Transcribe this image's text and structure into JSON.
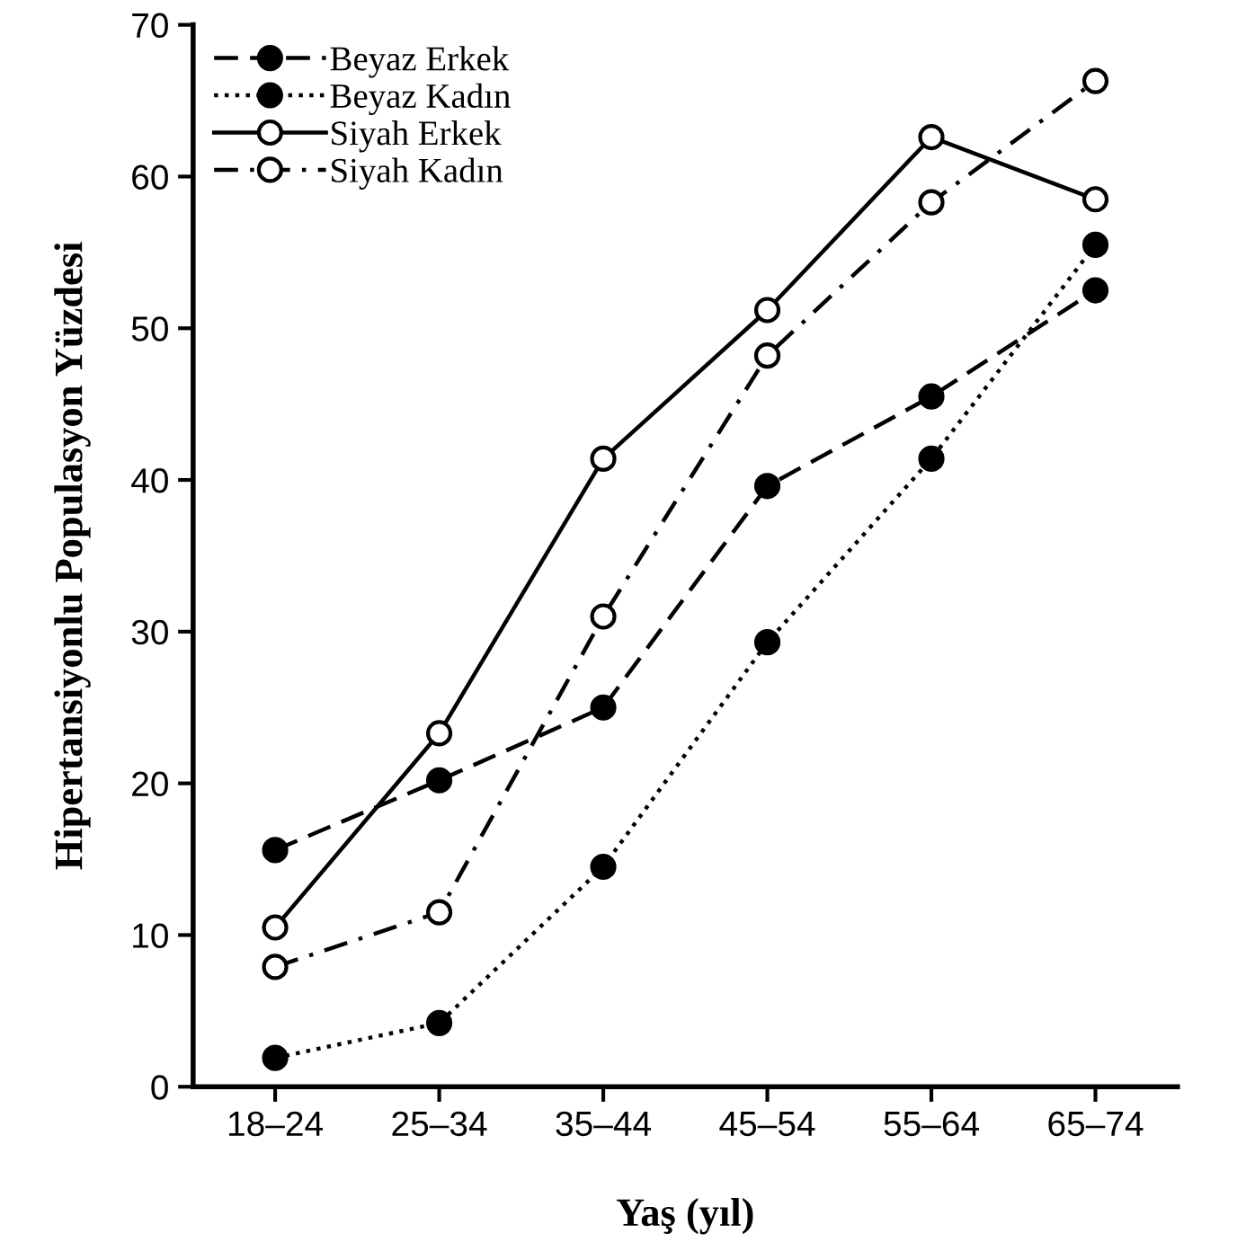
{
  "chart_data": {
    "type": "line",
    "xlabel": "Yaş (yıl)",
    "ylabel": "Hipertansiyonlu Populasyon Yüzdesi",
    "categories": [
      "18–24",
      "25–34",
      "35–44",
      "45–54",
      "55–64",
      "65–74"
    ],
    "series": [
      {
        "name": "Beyaz Erkek",
        "color": "#000000",
        "values": [
          15.6,
          20.2,
          25.0,
          39.6,
          45.5,
          52.5
        ],
        "marker": "circle",
        "line_style": "dashed"
      },
      {
        "name": "Beyaz Kadın",
        "color": "#000000",
        "values": [
          1.9,
          4.2,
          14.5,
          29.3,
          41.4,
          55.5
        ],
        "marker": "circle",
        "line_style": "dotted"
      },
      {
        "name": "Siyah Erkek",
        "color": "#000000",
        "values": [
          10.5,
          23.3,
          41.4,
          51.2,
          62.6,
          58.5
        ],
        "marker": "circle_open",
        "line_style": "solid"
      },
      {
        "name": "Siyah Kadın",
        "color": "#000000",
        "values": [
          7.9,
          11.5,
          31.0,
          48.2,
          58.3,
          66.3
        ],
        "marker": "circle_open",
        "line_style": "dashdot"
      }
    ],
    "ylim": [
      0,
      70
    ],
    "yticks": [
      0,
      10,
      20,
      30,
      40,
      50,
      60,
      70
    ],
    "grid": false,
    "legend": "top left"
  }
}
